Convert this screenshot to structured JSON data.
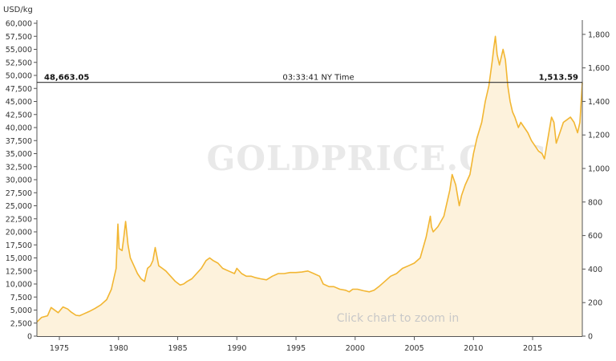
{
  "chart_data": {
    "type": "area",
    "unit_label": "USD/kg",
    "watermark": "GOLDPRICE.ORG",
    "hint": "Click chart to zoom in",
    "readout": {
      "left_value": "48,663.05",
      "time": "03:33:41 NY Time",
      "right_value": "1,513.59"
    },
    "y_left": {
      "ylim": [
        0,
        60000
      ],
      "ticks": [
        0,
        2500,
        5000,
        7500,
        10000,
        12500,
        15000,
        17500,
        20000,
        22500,
        25000,
        27500,
        30000,
        32500,
        35000,
        37500,
        40000,
        42500,
        45000,
        47500,
        50000,
        52500,
        55000,
        57500,
        60000
      ],
      "tick_labels": [
        "0",
        "2,500",
        "5,000",
        "7,500",
        "10,000",
        "12,500",
        "15,000",
        "17,500",
        "20,000",
        "22,500",
        "25,000",
        "27,500",
        "30,000",
        "32,500",
        "35,000",
        "37,500",
        "40,000",
        "42,500",
        "45,000",
        "47,500",
        "50,000",
        "52,500",
        "55,000",
        "57,500",
        "60,000"
      ]
    },
    "y_right": {
      "ylim": [
        0,
        1866.2
      ],
      "ticks": [
        0,
        200,
        400,
        600,
        800,
        1000,
        1200,
        1400,
        1600,
        1800
      ],
      "tick_labels": [
        "0",
        "200",
        "400",
        "600",
        "800",
        "1,000",
        "1,200",
        "1,400",
        "1,600",
        "1,800"
      ]
    },
    "x_axis": {
      "xlim": [
        1973.1,
        2019.2
      ],
      "ticks": [
        1975,
        1980,
        1985,
        1990,
        1995,
        2000,
        2005,
        2010,
        2015
      ],
      "tick_labels": [
        "1975",
        "1980",
        "1985",
        "1990",
        "1995",
        "2000",
        "2005",
        "2010",
        "2015"
      ]
    },
    "crosshair_value": 48663.05,
    "colors": {
      "line": "#f2b632",
      "fill": "#fdf2dc",
      "crosshair": "#333333",
      "axis": "#555555"
    },
    "series": [
      {
        "x": [
          1973.1,
          1973.5,
          1974.0,
          1974.3,
          1974.9,
          1975.3,
          1975.7,
          1976.0,
          1976.4,
          1976.7,
          1977.0,
          1977.5,
          1978.0,
          1978.5,
          1979.0,
          1979.4,
          1979.8,
          1979.95,
          1980.05,
          1980.3,
          1980.45,
          1980.6,
          1980.8,
          1981.0,
          1981.3,
          1981.6,
          1981.9,
          1982.2,
          1982.45,
          1982.7,
          1982.9,
          1983.1,
          1983.4,
          1983.7,
          1984.0,
          1984.4,
          1984.8,
          1985.2,
          1985.5,
          1985.8,
          1986.2,
          1986.6,
          1987.0,
          1987.4,
          1987.7,
          1988.0,
          1988.4,
          1988.8,
          1989.3,
          1989.8,
          1990.0,
          1990.4,
          1990.8,
          1991.2,
          1991.6,
          1992.0,
          1992.5,
          1993.0,
          1993.5,
          1994.0,
          1994.5,
          1995.0,
          1995.5,
          1996.0,
          1996.5,
          1997.0,
          1997.3,
          1997.8,
          1998.2,
          1998.7,
          1999.2,
          1999.5,
          1999.8,
          2000.2,
          2000.7,
          2001.2,
          2001.6,
          2002.0,
          2002.5,
          2003.0,
          2003.5,
          2004.0,
          2004.5,
          2005.0,
          2005.5,
          2006.0,
          2006.35,
          2006.45,
          2006.6,
          2007.0,
          2007.5,
          2008.0,
          2008.2,
          2008.5,
          2008.8,
          2009.0,
          2009.3,
          2009.7,
          2010.0,
          2010.3,
          2010.7,
          2011.0,
          2011.3,
          2011.6,
          2011.7,
          2011.85,
          2012.0,
          2012.2,
          2012.5,
          2012.7,
          2012.9,
          2013.1,
          2013.3,
          2013.5,
          2013.8,
          2014.0,
          2014.3,
          2014.6,
          2014.9,
          2015.2,
          2015.5,
          2015.8,
          2016.0,
          2016.3,
          2016.6,
          2016.8,
          2017.0,
          2017.3,
          2017.6,
          2017.9,
          2018.2,
          2018.5,
          2018.8,
          2019.0,
          2019.2
        ],
        "values": [
          2700,
          3600,
          3900,
          5500,
          4500,
          5600,
          5200,
          4600,
          4000,
          3900,
          4200,
          4700,
          5300,
          6000,
          7000,
          9000,
          13000,
          21500,
          16800,
          16400,
          19000,
          22000,
          17500,
          15000,
          13500,
          12000,
          11000,
          10500,
          13000,
          13500,
          14500,
          17000,
          13500,
          13000,
          12500,
          11500,
          10500,
          9800,
          10000,
          10500,
          11000,
          12000,
          13000,
          14500,
          15000,
          14500,
          14000,
          13000,
          12500,
          12000,
          13000,
          12000,
          11500,
          11500,
          11200,
          11000,
          10800,
          11500,
          12000,
          12000,
          12200,
          12200,
          12300,
          12500,
          12000,
          11500,
          10000,
          9500,
          9500,
          9000,
          8800,
          8500,
          9000,
          9000,
          8700,
          8500,
          8800,
          9500,
          10500,
          11500,
          12000,
          13000,
          13500,
          14000,
          15000,
          19000,
          23000,
          21000,
          20000,
          21000,
          23000,
          28000,
          31000,
          29000,
          25000,
          27000,
          29000,
          31000,
          35000,
          38000,
          41000,
          45000,
          48000,
          53000,
          55000,
          57500,
          54000,
          52000,
          55000,
          53000,
          48000,
          45000,
          43000,
          42000,
          40000,
          41000,
          40000,
          39000,
          37500,
          36500,
          35500,
          35000,
          34000,
          38000,
          42000,
          41000,
          37000,
          39000,
          41000,
          41500,
          42000,
          41000,
          39000,
          41000,
          48663.05
        ]
      }
    ]
  }
}
